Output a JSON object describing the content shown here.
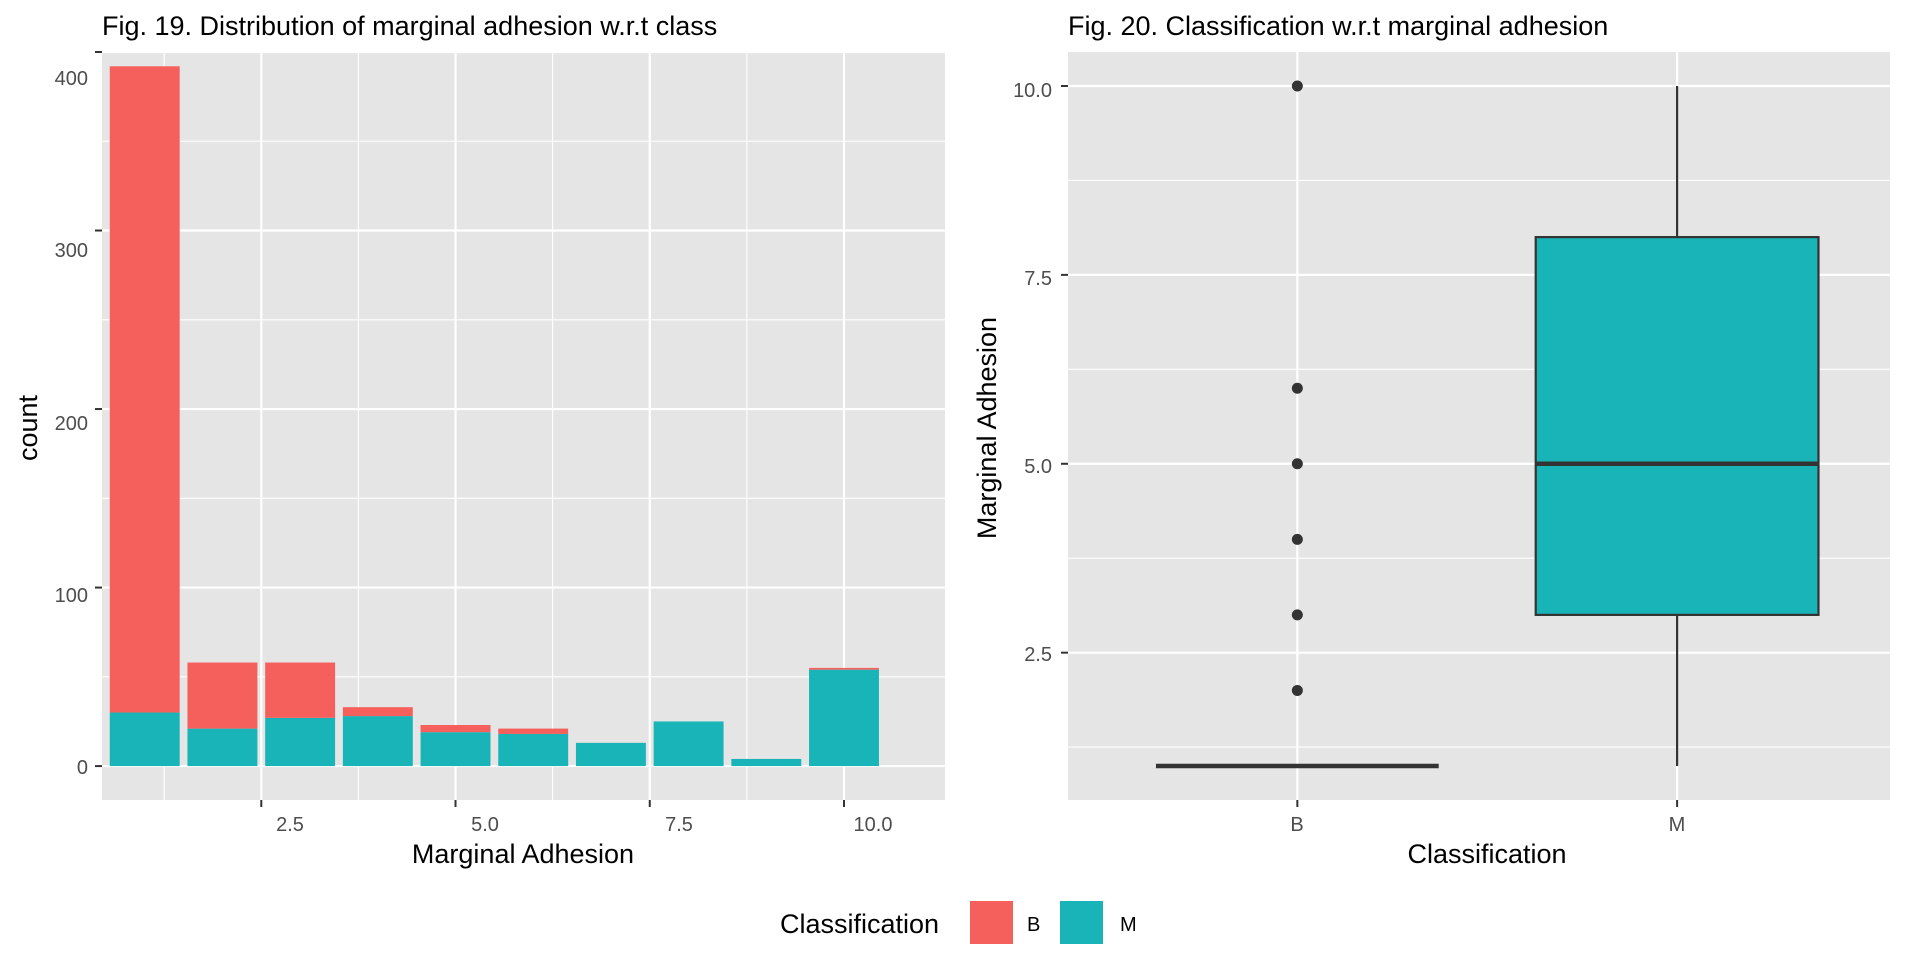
{
  "chart_data": [
    {
      "type": "bar",
      "stacked": true,
      "title": "Fig. 19. Distribution of marginal adhesion w.r.t class",
      "xlabel": "Marginal Adhesion",
      "ylabel": "count",
      "x_ticks": [
        "2.5",
        "5.0",
        "7.5",
        "10.0"
      ],
      "y_ticks": [
        "0",
        "100",
        "200",
        "300",
        "400"
      ],
      "xlim": [
        0.45,
        11.3
      ],
      "ylim": [
        -19,
        400
      ],
      "grid": true,
      "categories": [
        1,
        2,
        3,
        4,
        5,
        6,
        7,
        8,
        9,
        10
      ],
      "series": [
        {
          "name": "M",
          "color": "#19b4b8",
          "values": [
            30,
            21,
            27,
            28,
            19,
            18,
            13,
            25,
            4,
            54
          ]
        },
        {
          "name": "B",
          "color": "#f5605c",
          "values": [
            362,
            37,
            31,
            5,
            4,
            3,
            0,
            0,
            0,
            1
          ]
        }
      ]
    },
    {
      "type": "boxplot",
      "title": "Fig. 20. Classification w.r.t marginal adhesion",
      "xlabel": "Classification",
      "ylabel": "Marginal Adhesion",
      "categories": [
        "B",
        "M"
      ],
      "x_ticks": [
        "B",
        "M"
      ],
      "y_ticks": [
        "2.5",
        "5.0",
        "7.5",
        "10.0"
      ],
      "ylim": [
        0.55,
        10.45
      ],
      "grid": true,
      "boxes": [
        {
          "name": "B",
          "min": 1,
          "q1": 1,
          "median": 1,
          "q3": 1,
          "max": 1,
          "outliers": [
            2,
            3,
            4,
            5,
            6,
            10
          ],
          "fill": "#f5605c"
        },
        {
          "name": "M",
          "min": 1,
          "q1": 3,
          "median": 5,
          "q3": 8,
          "max": 10,
          "outliers": [],
          "fill": "#19b4b8"
        }
      ]
    }
  ],
  "legend": {
    "title": "Classification",
    "position": "bottom",
    "items": [
      {
        "label": "B",
        "color": "#f5605c"
      },
      {
        "label": "M",
        "color": "#19b4b8"
      }
    ]
  }
}
